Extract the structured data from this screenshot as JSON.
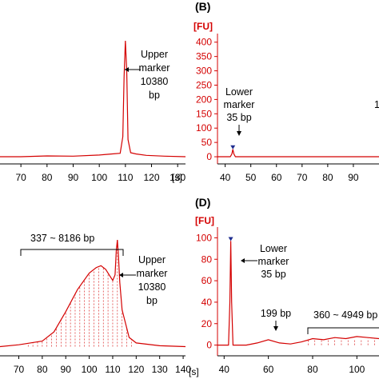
{
  "colors": {
    "trace": "#d40000",
    "axis": "#d40000",
    "marker": "#1f2d8f"
  },
  "chart_data": [
    {
      "id": "A",
      "type": "line",
      "panel_label": "",
      "xlabel": "[s]",
      "ylabel": "",
      "xlim": [
        62,
        133
      ],
      "ylim": [
        -25,
        430
      ],
      "xticks": [
        70,
        80,
        90,
        100,
        110,
        120,
        130
      ],
      "yticks": [],
      "x": [
        62,
        70,
        80,
        90,
        100,
        105,
        108,
        109,
        109.5,
        110,
        110.5,
        111,
        112,
        114,
        118,
        125,
        133
      ],
      "y": [
        0,
        0,
        3,
        2,
        6,
        10,
        12,
        70,
        280,
        405,
        300,
        60,
        14,
        10,
        5,
        2,
        0
      ],
      "annotations": [
        {
          "lines": [
            "Upper",
            "marker",
            "10380",
            "bp"
          ],
          "x": 110,
          "y": 290
        }
      ]
    },
    {
      "id": "B",
      "type": "line",
      "panel_label": "(B)",
      "xlabel": "",
      "ylabel": "[FU]",
      "xlim": [
        37,
        100
      ],
      "ylim": [
        -25,
        430
      ],
      "xticks": [
        40,
        50,
        60,
        70,
        80,
        90
      ],
      "yticks": [
        0,
        50,
        100,
        150,
        200,
        250,
        300,
        350,
        400
      ],
      "x": [
        37,
        42,
        42.6,
        43,
        43.4,
        44,
        50,
        60,
        70,
        80,
        90,
        100
      ],
      "y": [
        0,
        0,
        10,
        26,
        10,
        0,
        0,
        0,
        0,
        0,
        0,
        0
      ],
      "annotations": [
        {
          "lines": [
            "Lower",
            "marker",
            "35 bp"
          ],
          "x": 43,
          "y": 26
        },
        {
          "lines": [
            "1"
          ],
          "x": 97,
          "y": 175
        }
      ]
    },
    {
      "id": "C",
      "type": "line",
      "panel_label": "",
      "xlabel": "[s]",
      "ylabel": "",
      "xlim": [
        62,
        141
      ],
      "ylim": [
        -5,
        65
      ],
      "xticks": [
        70,
        80,
        90,
        100,
        110,
        120,
        130,
        140
      ],
      "yticks": [],
      "x": [
        62,
        70,
        80,
        85,
        90,
        95,
        100,
        103,
        105,
        107,
        109,
        110,
        111,
        111.5,
        112,
        112.5,
        113,
        114,
        117,
        120,
        130,
        141
      ],
      "y": [
        0,
        1,
        3,
        8,
        19,
        31,
        40,
        43,
        44,
        42,
        38,
        36,
        39,
        52,
        58,
        48,
        35,
        20,
        5,
        2,
        0.5,
        0
      ],
      "annotations": [
        {
          "lines": [
            "337 ~ 8186 bp"
          ],
          "x": 90,
          "y": 49
        },
        {
          "lines": [
            "Upper",
            "marker",
            "10380",
            "bp"
          ],
          "x": 112,
          "y": 40
        }
      ]
    },
    {
      "id": "D",
      "type": "line",
      "panel_label": "(D)",
      "xlabel": "",
      "ylabel": "[FU]",
      "xlim": [
        37,
        110
      ],
      "ylim": [
        -10,
        110
      ],
      "xticks": [
        40,
        60,
        80,
        100
      ],
      "yticks": [
        0,
        20,
        40,
        60,
        80,
        100
      ],
      "x": [
        37,
        40,
        42,
        42.6,
        43,
        43.4,
        44,
        50,
        55,
        60,
        65,
        70,
        75,
        80,
        85,
        90,
        95,
        100,
        105,
        110
      ],
      "y": [
        0,
        0,
        0,
        40,
        97,
        40,
        0,
        0,
        2,
        5,
        2,
        1,
        3,
        6,
        5,
        7,
        6,
        8,
        7,
        6
      ],
      "annotations": [
        {
          "lines": [
            "Lower",
            "marker",
            "35 bp"
          ],
          "x": 43,
          "y": 92
        },
        {
          "lines": [
            "199 bp"
          ],
          "x": 60,
          "y": 8
        },
        {
          "lines": [
            "360 ~ 4949 bp"
          ],
          "x": 92,
          "y": 12
        }
      ]
    }
  ]
}
